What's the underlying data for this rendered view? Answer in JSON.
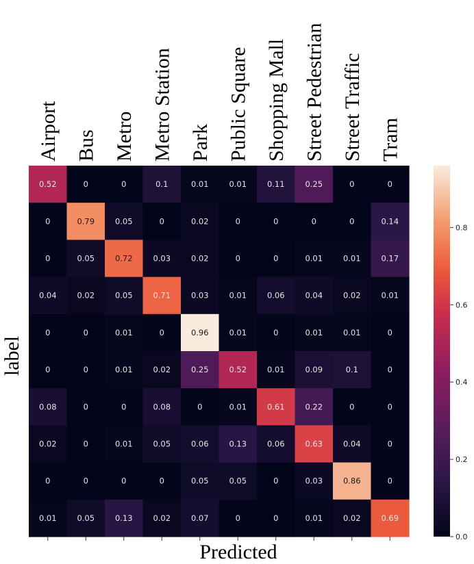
{
  "chart_data": {
    "type": "heatmap",
    "title": "",
    "xlabel": "Predicted",
    "ylabel": "label",
    "x_categories": [
      "Airport",
      "Bus",
      "Metro",
      "Metro Station",
      "Park",
      "Public Square",
      "Shopping Mall",
      "Street Pedestrian",
      "Street Traffic",
      "Tram"
    ],
    "y_categories": [],
    "values": [
      [
        0.52,
        0,
        0,
        0.1,
        0.01,
        0.01,
        0.11,
        0.25,
        0,
        0
      ],
      [
        0,
        0.79,
        0.05,
        0,
        0.02,
        0,
        0,
        0,
        0,
        0.14
      ],
      [
        0,
        0.05,
        0.72,
        0.03,
        0.02,
        0,
        0,
        0.01,
        0.01,
        0.17
      ],
      [
        0.04,
        0.02,
        0.05,
        0.71,
        0.03,
        0.01,
        0.06,
        0.04,
        0.02,
        0.01
      ],
      [
        0,
        0,
        0.01,
        0,
        0.96,
        0.01,
        0,
        0.01,
        0.01,
        0
      ],
      [
        0,
        0,
        0.01,
        0.02,
        0.25,
        0.52,
        0.01,
        0.09,
        0.1,
        0
      ],
      [
        0.08,
        0,
        0,
        0.08,
        0,
        0.01,
        0.61,
        0.22,
        0,
        0
      ],
      [
        0.02,
        0,
        0.01,
        0.05,
        0.06,
        0.13,
        0.06,
        0.63,
        0.04,
        0
      ],
      [
        0,
        0,
        0,
        0,
        0.05,
        0.05,
        0,
        0.03,
        0.86,
        0
      ],
      [
        0.01,
        0.05,
        0.13,
        0.02,
        0.07,
        0,
        0,
        0.01,
        0.02,
        0.69
      ]
    ],
    "colorbar": {
      "range": [
        0.0,
        0.96
      ],
      "ticks": [
        0.0,
        0.2,
        0.4,
        0.6,
        0.8
      ],
      "tick_labels": [
        "0.0",
        "0.2",
        "0.4",
        "0.6",
        "0.8"
      ],
      "colormap": "rocket"
    },
    "x_tick_labels_position": "top",
    "grid": false,
    "legend": "colorbar-right"
  }
}
